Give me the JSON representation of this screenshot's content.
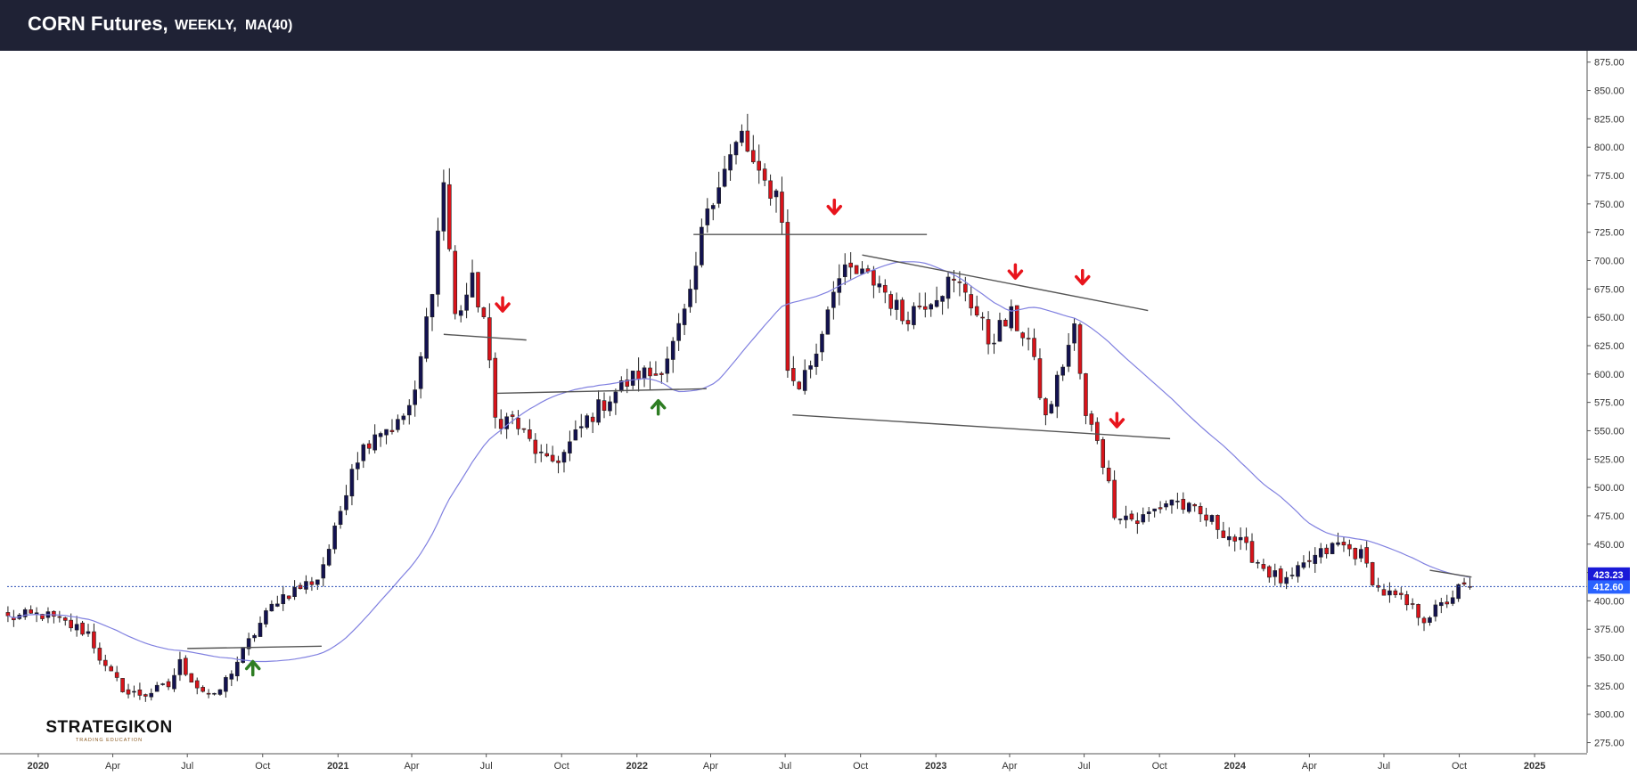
{
  "header": {
    "title": "CORN Futures,",
    "timeframe": "WEEKLY,",
    "indicator": "MA(40)"
  },
  "logo": {
    "name": "STRATEGIKON",
    "tagline": "TRADING EDUCATION"
  },
  "chart_data": {
    "type": "candlestick",
    "symbol": "CORN Futures",
    "interval": "WEEKLY",
    "y_ticks": [
      "275.00",
      "300.00",
      "325.00",
      "350.00",
      "375.00",
      "400.00",
      "425.00",
      "450.00",
      "475.00",
      "500.00",
      "525.00",
      "550.00",
      "575.00",
      "600.00",
      "625.00",
      "650.00",
      "675.00",
      "700.00",
      "725.00",
      "750.00",
      "775.00",
      "800.00",
      "825.00",
      "850.00",
      "875.00"
    ],
    "ylim": [
      266,
      885
    ],
    "x_ticks": [
      {
        "date": "2020-01-01",
        "label": "2020",
        "bold": true
      },
      {
        "date": "2020-04-01",
        "label": "Apr",
        "bold": false
      },
      {
        "date": "2020-07-01",
        "label": "Jul",
        "bold": false
      },
      {
        "date": "2020-10-01",
        "label": "Oct",
        "bold": false
      },
      {
        "date": "2021-01-01",
        "label": "2021",
        "bold": true
      },
      {
        "date": "2021-04-01",
        "label": "Apr",
        "bold": false
      },
      {
        "date": "2021-07-01",
        "label": "Jul",
        "bold": false
      },
      {
        "date": "2021-10-01",
        "label": "Oct",
        "bold": false
      },
      {
        "date": "2022-01-01",
        "label": "2022",
        "bold": true
      },
      {
        "date": "2022-04-01",
        "label": "Apr",
        "bold": false
      },
      {
        "date": "2022-07-01",
        "label": "Jul",
        "bold": false
      },
      {
        "date": "2022-10-01",
        "label": "Oct",
        "bold": false
      },
      {
        "date": "2023-01-01",
        "label": "2023",
        "bold": true
      },
      {
        "date": "2023-04-01",
        "label": "Apr",
        "bold": false
      },
      {
        "date": "2023-07-01",
        "label": "Jul",
        "bold": false
      },
      {
        "date": "2023-10-01",
        "label": "Oct",
        "bold": false
      },
      {
        "date": "2024-01-01",
        "label": "2024",
        "bold": true
      },
      {
        "date": "2024-04-01",
        "label": "Apr",
        "bold": false
      },
      {
        "date": "2024-07-01",
        "label": "Jul",
        "bold": false
      },
      {
        "date": "2024-10-01",
        "label": "Oct",
        "bold": false
      },
      {
        "date": "2025-01-01",
        "label": "2025",
        "bold": true
      }
    ],
    "xlim": [
      "2019-11-24",
      "2025-03-05"
    ],
    "close_anchors": [
      [
        "2019-11-25",
        385
      ],
      [
        "2020-01-06",
        388
      ],
      [
        "2020-02-10",
        378
      ],
      [
        "2020-03-02",
        372
      ],
      [
        "2020-03-23",
        340
      ],
      [
        "2020-04-20",
        318
      ],
      [
        "2020-05-11",
        318
      ],
      [
        "2020-06-08",
        325
      ],
      [
        "2020-06-22",
        345
      ],
      [
        "2020-07-13",
        325
      ],
      [
        "2020-08-03",
        314
      ],
      [
        "2020-08-17",
        330
      ],
      [
        "2020-09-07",
        355
      ],
      [
        "2020-09-28",
        380
      ],
      [
        "2020-10-19",
        402
      ],
      [
        "2020-11-16",
        412
      ],
      [
        "2020-12-07",
        420
      ],
      [
        "2020-12-28",
        460
      ],
      [
        "2021-01-18",
        520
      ],
      [
        "2021-02-15",
        550
      ],
      [
        "2021-03-15",
        555
      ],
      [
        "2021-04-05",
        580
      ],
      [
        "2021-04-26",
        680
      ],
      [
        "2021-05-10",
        770
      ],
      [
        "2021-05-24",
        650
      ],
      [
        "2021-06-14",
        680
      ],
      [
        "2021-06-28",
        650
      ],
      [
        "2021-07-12",
        560
      ],
      [
        "2021-08-02",
        560
      ],
      [
        "2021-08-23",
        540
      ],
      [
        "2021-09-13",
        520
      ],
      [
        "2021-10-04",
        530
      ],
      [
        "2021-11-01",
        560
      ],
      [
        "2021-12-06",
        585
      ],
      [
        "2022-01-03",
        600
      ],
      [
        "2022-01-24",
        600
      ],
      [
        "2022-02-14",
        625
      ],
      [
        "2022-03-07",
        665
      ],
      [
        "2022-03-28",
        750
      ],
      [
        "2022-04-18",
        780
      ],
      [
        "2022-05-09",
        810
      ],
      [
        "2022-05-30",
        770
      ],
      [
        "2022-06-20",
        760
      ],
      [
        "2022-06-27",
        740
      ],
      [
        "2022-07-04",
        600
      ],
      [
        "2022-07-18",
        590
      ],
      [
        "2022-08-08",
        620
      ],
      [
        "2022-08-29",
        680
      ],
      [
        "2022-09-19",
        690
      ],
      [
        "2022-10-24",
        680
      ],
      [
        "2022-11-21",
        650
      ],
      [
        "2022-12-19",
        665
      ],
      [
        "2023-01-16",
        680
      ],
      [
        "2023-02-06",
        675
      ],
      [
        "2023-03-06",
        630
      ],
      [
        "2023-04-03",
        650
      ],
      [
        "2023-04-24",
        630
      ],
      [
        "2023-05-15",
        560
      ],
      [
        "2023-06-05",
        610
      ],
      [
        "2023-06-19",
        640
      ],
      [
        "2023-07-03",
        560
      ],
      [
        "2023-07-17",
        545
      ],
      [
        "2023-08-07",
        480
      ],
      [
        "2023-09-04",
        470
      ],
      [
        "2023-10-16",
        490
      ],
      [
        "2023-11-06",
        480
      ],
      [
        "2023-12-04",
        470
      ],
      [
        "2024-01-08",
        450
      ],
      [
        "2024-02-12",
        425
      ],
      [
        "2024-03-04",
        415
      ],
      [
        "2024-04-01",
        435
      ],
      [
        "2024-05-06",
        450
      ],
      [
        "2024-06-03",
        440
      ],
      [
        "2024-06-24",
        410
      ],
      [
        "2024-07-22",
        400
      ],
      [
        "2024-08-19",
        385
      ],
      [
        "2024-09-09",
        395
      ],
      [
        "2024-09-30",
        410
      ],
      [
        "2024-10-14",
        412.6
      ]
    ],
    "ma_label": "MA(40)",
    "ma_value": 423.23,
    "ma_color": "#8080e0",
    "last_price": 412.6,
    "last_price_label": "412.60",
    "ma_label_text": "423.23",
    "colors": {
      "up": "#131250",
      "down": "#d8131a",
      "wick": "#222222",
      "ma": "#8080e0",
      "price_line": "#2a4fb5",
      "price_label_bg": "#2962ff",
      "ma_label_bg": "#1a1ad8",
      "arrow_down": "#e8141c",
      "arrow_up": "#2e7d23",
      "header_bg": "#1f2235"
    },
    "trendlines": [
      {
        "from": [
          "2020-07-01",
          358
        ],
        "to": [
          "2020-12-12",
          360
        ]
      },
      {
        "from": [
          "2021-05-10",
          635
        ],
        "to": [
          "2021-08-19",
          630
        ]
      },
      {
        "from": [
          "2021-07-14",
          583
        ],
        "to": [
          "2022-03-27",
          587
        ]
      },
      {
        "from": [
          "2022-03-11",
          723
        ],
        "to": [
          "2022-12-21",
          723
        ]
      },
      {
        "from": [
          "2022-07-10",
          564
        ],
        "to": [
          "2023-10-14",
          543
        ]
      },
      {
        "from": [
          "2022-10-03",
          705
        ],
        "to": [
          "2023-09-17",
          656
        ]
      },
      {
        "from": [
          "2024-08-26",
          427
        ],
        "to": [
          "2024-10-16",
          421
        ]
      }
    ],
    "arrows_down": [
      {
        "date": "2021-07-21",
        "y": 661
      },
      {
        "date": "2022-08-30",
        "y": 747
      },
      {
        "date": "2023-04-08",
        "y": 690
      },
      {
        "date": "2023-06-29",
        "y": 685
      },
      {
        "date": "2023-08-10",
        "y": 559
      }
    ],
    "arrows_up": [
      {
        "date": "2020-09-19",
        "y": 341
      },
      {
        "date": "2022-01-27",
        "y": 571
      }
    ]
  }
}
